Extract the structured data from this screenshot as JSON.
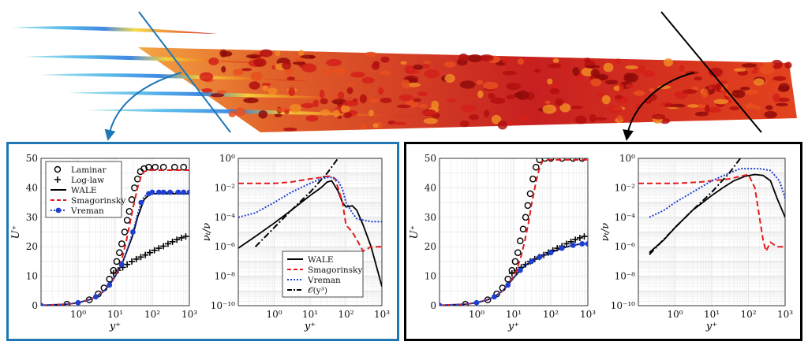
{
  "colors": {
    "left_frame": "#1f77b4",
    "right_frame": "#000000",
    "wale": "#000000",
    "smagorinsky": "#e31a1c",
    "vreman": "#1f3fd1",
    "laminar": "#000000",
    "loglaw": "#000000"
  },
  "scene": {
    "description_icons": [
      "flow-visualization-icon",
      "arrow-left-icon",
      "arrow-right-icon"
    ]
  },
  "legend_u": {
    "laminar": "Laminar",
    "loglaw": "Log-law",
    "wale": "WALE",
    "smagorinsky": "Smagorinsky",
    "vreman": "Vreman"
  },
  "legend_nu": {
    "wale": "WALE",
    "smagorinsky": "Smagorinsky",
    "vreman": "Vreman",
    "oy3": "𝒪(y³)"
  },
  "chart_data": [
    {
      "id": "left-velocity",
      "type": "line",
      "xlabel": "y⁺",
      "ylabel": "U⁺",
      "xscale": "log",
      "xlim": [
        0.1,
        1000
      ],
      "ylim": [
        0,
        50
      ],
      "xticks": [
        "10⁰",
        "10¹",
        "10²",
        "10³"
      ],
      "yticks": [
        "0",
        "10",
        "20",
        "30",
        "40",
        "50"
      ],
      "grid": true,
      "legend_position": "top-left",
      "series": [
        {
          "name": "Laminar",
          "style": "circles",
          "x": [
            0.5,
            2,
            3.5,
            5,
            7,
            9,
            11,
            13,
            15,
            18,
            21,
            24,
            28,
            33,
            40,
            48,
            60,
            80,
            120,
            200,
            400,
            700
          ],
          "y": [
            0.5,
            2,
            4,
            6,
            9,
            12,
            15,
            18,
            21,
            25,
            29,
            32,
            36,
            40,
            43,
            45.5,
            46.5,
            47,
            47,
            47,
            47,
            47
          ]
        },
        {
          "name": "Log-law",
          "style": "plus",
          "x": [
            9,
            12,
            16,
            21,
            28,
            37,
            49,
            65,
            86,
            114,
            150,
            200,
            265,
            350,
            460,
            610,
            800
          ],
          "y": [
            11,
            12,
            13,
            14,
            15,
            15.8,
            16.5,
            17.2,
            18,
            18.8,
            19.5,
            20.2,
            21,
            21.7,
            22.4,
            23,
            23.5
          ]
        },
        {
          "name": "WALE",
          "style": "solid",
          "x": [
            0.1,
            0.5,
            1,
            2,
            3,
            5,
            7,
            10,
            15,
            20,
            30,
            40,
            60,
            80,
            100,
            200,
            500,
            1000
          ],
          "y": [
            0.1,
            0.5,
            1,
            2,
            3,
            5,
            7,
            10,
            14,
            18,
            24,
            30,
            36,
            37.5,
            38,
            38,
            38,
            38
          ]
        },
        {
          "name": "Smagorinsky",
          "style": "dashed",
          "x": [
            0.1,
            0.5,
            1,
            2,
            3,
            5,
            8,
            12,
            16,
            20,
            25,
            30,
            40,
            50,
            60,
            80,
            100,
            200,
            500,
            1000
          ],
          "y": [
            0.1,
            0.5,
            1,
            2,
            3,
            5,
            8,
            12,
            17,
            22,
            28,
            33,
            40,
            44,
            45.5,
            46,
            46,
            46,
            46,
            46
          ]
        },
        {
          "name": "Vreman",
          "style": "dotted-markers",
          "x": [
            0.1,
            0.5,
            1,
            2,
            3,
            5,
            7,
            10,
            15,
            20,
            30,
            40,
            50,
            60,
            80,
            100,
            150,
            200,
            300,
            500,
            700,
            1000
          ],
          "y": [
            0.1,
            0.5,
            1,
            2,
            3,
            5,
            7,
            10,
            14,
            18,
            25,
            31,
            35,
            37,
            38,
            38.5,
            38.5,
            38.5,
            38.5,
            38.5,
            38.5,
            38.5
          ]
        }
      ]
    },
    {
      "id": "left-viscosity",
      "type": "line",
      "xlabel": "y⁺",
      "ylabel": "νₜ/ν",
      "xscale": "log",
      "yscale": "log",
      "xlim": [
        0.1,
        1000
      ],
      "ylim": [
        1e-10,
        1
      ],
      "xticks": [
        "10⁰",
        "10¹",
        "10²",
        "10³"
      ],
      "yticks": [
        "10⁰",
        "10⁻²",
        "10⁻⁴",
        "10⁻⁶",
        "10⁻⁸",
        "10⁻¹⁰"
      ],
      "grid": true,
      "legend_position": "bottom-left",
      "series": [
        {
          "name": "WALE",
          "style": "solid",
          "x": [
            0.1,
            0.3,
            1,
            3,
            10,
            20,
            30,
            40,
            60,
            80,
            100,
            150,
            200,
            300,
            500,
            1000
          ],
          "y": [
            8e-07,
            5e-06,
            4e-05,
            0.0003,
            0.003,
            0.01,
            0.025,
            0.03,
            0.006,
            0.001,
            0.0005,
            0.0006,
            0.0003,
            3e-05,
            1e-06,
            2e-09
          ]
        },
        {
          "name": "Smagorinsky",
          "style": "dashed",
          "x": [
            0.1,
            1,
            3,
            10,
            20,
            30,
            40,
            50,
            60,
            80,
            100,
            150,
            200,
            300,
            500,
            1000
          ],
          "y": [
            0.02,
            0.02,
            0.025,
            0.04,
            0.05,
            0.06,
            0.06,
            0.04,
            0.01,
            0.001,
            3e-05,
            1e-05,
            3e-06,
            5e-07,
            1e-06,
            1e-06
          ]
        },
        {
          "name": "Vreman",
          "style": "dotted",
          "x": [
            0.1,
            0.3,
            1,
            3,
            10,
            20,
            30,
            40,
            60,
            80,
            100,
            150,
            200,
            500,
            1000
          ],
          "y": [
            0.0001,
            0.0002,
            0.001,
            0.005,
            0.02,
            0.04,
            0.05,
            0.05,
            0.03,
            0.008,
            0.001,
            0.0002,
            8e-05,
            5e-05,
            5e-05
          ]
        },
        {
          "name": "O(y^3)",
          "style": "dashdot",
          "x": [
            0.3,
            1,
            3,
            10,
            30,
            60
          ],
          "y": [
            1e-06,
            2e-05,
            0.0003,
            0.005,
            0.1,
            1
          ]
        }
      ]
    },
    {
      "id": "right-velocity",
      "type": "line",
      "xlabel": "y⁺",
      "ylabel": "U⁺",
      "xscale": "log",
      "xlim": [
        0.1,
        1000
      ],
      "ylim": [
        0,
        50
      ],
      "xticks": [
        "10⁰",
        "10¹",
        "10²",
        "10³"
      ],
      "yticks": [
        "0",
        "10",
        "20",
        "30",
        "40",
        "50"
      ],
      "grid": true,
      "series": [
        {
          "name": "Laminar",
          "style": "circles",
          "x": [
            0.5,
            2,
            3.5,
            5,
            7,
            9,
            11,
            13,
            15,
            18,
            21,
            24,
            28,
            33,
            40,
            50,
            70,
            100,
            200,
            400,
            700
          ],
          "y": [
            0.5,
            2,
            4,
            6,
            9,
            12,
            15,
            18,
            22,
            26,
            30,
            34,
            38,
            43,
            47,
            49.5,
            50,
            50,
            50,
            50,
            50
          ]
        },
        {
          "name": "Log-law",
          "style": "plus",
          "x": [
            9,
            12,
            16,
            21,
            28,
            37,
            49,
            65,
            86,
            114,
            150,
            200,
            265,
            350,
            460,
            610,
            800
          ],
          "y": [
            11,
            12,
            13,
            14,
            15,
            15.8,
            16.5,
            17.2,
            18,
            18.8,
            19.5,
            20.2,
            21,
            21.7,
            22.4,
            23,
            23.5
          ]
        },
        {
          "name": "WALE",
          "style": "solid",
          "x": [
            0.1,
            0.5,
            1,
            2,
            3,
            5,
            7,
            10,
            15,
            20,
            30,
            50,
            100,
            200,
            400,
            700,
            1000
          ],
          "y": [
            0.1,
            0.5,
            1,
            2,
            3,
            5,
            7,
            9.5,
            12,
            13.5,
            15,
            16.5,
            18,
            19.5,
            20.5,
            21,
            21
          ]
        },
        {
          "name": "Smagorinsky",
          "style": "dashed",
          "x": [
            0.1,
            0.5,
            1,
            2,
            3,
            5,
            8,
            12,
            16,
            20,
            25,
            30,
            40,
            50,
            60,
            80,
            100,
            200,
            500,
            1000
          ],
          "y": [
            0.1,
            0.5,
            1,
            2,
            3,
            5,
            8,
            12,
            17,
            22,
            28,
            34,
            42,
            47,
            49,
            49.5,
            49.5,
            49.5,
            49.5,
            49.5
          ]
        },
        {
          "name": "Vreman",
          "style": "dotted-markers",
          "x": [
            0.1,
            0.5,
            1,
            2,
            3,
            5,
            7,
            10,
            15,
            20,
            30,
            50,
            100,
            200,
            400,
            700,
            1000
          ],
          "y": [
            0.1,
            0.5,
            1,
            2,
            3,
            5,
            7,
            9.5,
            12,
            13.5,
            15,
            16.5,
            18,
            19.5,
            20.5,
            21,
            21
          ]
        }
      ]
    },
    {
      "id": "right-viscosity",
      "type": "line",
      "xlabel": "y⁺",
      "ylabel": "νₜ/ν",
      "xscale": "log",
      "yscale": "log",
      "xlim": [
        0.1,
        1000
      ],
      "ylim": [
        1e-10,
        1
      ],
      "xticks": [
        "10⁰",
        "10¹",
        "10²",
        "10³"
      ],
      "yticks": [
        "10⁰",
        "10⁻²",
        "10⁻⁴",
        "10⁻⁶",
        "10⁻⁸",
        "10⁻¹⁰"
      ],
      "grid": true,
      "series": [
        {
          "name": "WALE",
          "style": "solid",
          "x": [
            0.2,
            0.5,
            1,
            3,
            10,
            20,
            40,
            80,
            150,
            250,
            400,
            600,
            1000
          ],
          "y": [
            4e-07,
            3e-06,
            2e-05,
            0.0003,
            0.003,
            0.01,
            0.03,
            0.06,
            0.08,
            0.07,
            0.03,
            0.002,
            0.0001
          ]
        },
        {
          "name": "Smagorinsky",
          "style": "dashed",
          "x": [
            0.1,
            1,
            5,
            10,
            30,
            60,
            100,
            150,
            200,
            250,
            300,
            400,
            600,
            1000
          ],
          "y": [
            0.02,
            0.02,
            0.025,
            0.03,
            0.04,
            0.06,
            0.08,
            0.01,
            0.0001,
            3e-06,
            5e-07,
            2e-06,
            1e-06,
            1e-06
          ]
        },
        {
          "name": "Vreman",
          "style": "dotted",
          "x": [
            0.2,
            0.5,
            1,
            3,
            10,
            30,
            60,
            100,
            200,
            400,
            700,
            1000
          ],
          "y": [
            0.0001,
            0.0003,
            0.001,
            0.005,
            0.03,
            0.1,
            0.2,
            0.2,
            0.2,
            0.15,
            0.03,
            0.002
          ]
        },
        {
          "name": "O(y^3)",
          "style": "dashdot",
          "x": [
            0.2,
            1,
            3,
            10,
            30,
            60
          ],
          "y": [
            3e-07,
            2e-05,
            0.0003,
            0.005,
            0.1,
            1
          ]
        }
      ]
    }
  ]
}
